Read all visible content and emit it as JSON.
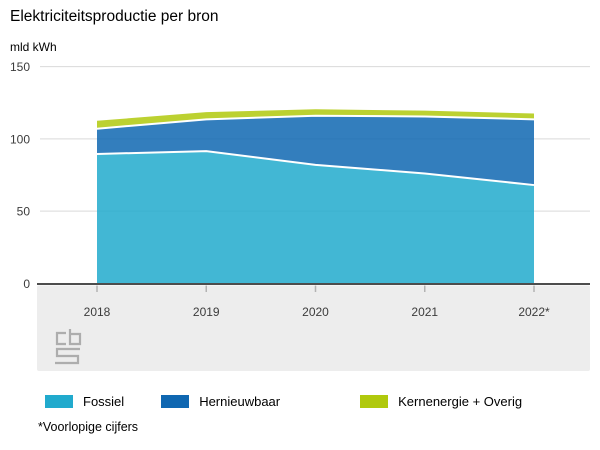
{
  "title": "Elektriciteitsproductie per bron",
  "unit_label": "mld kWh",
  "footnote": "*Voorlopige cijfers",
  "logo": "cbs",
  "colors": {
    "fossiel": "#21aacd",
    "hernieuwbaar": "#0f67b1",
    "kernenergie_overig": "#b0c90d",
    "gridline": "#d9d9d9",
    "zero_axis": "#4d4d4d",
    "axis_band": "#ededed",
    "tick": "#b3b3b3",
    "separator": "#ffffff",
    "logo_gray": "#adadad",
    "label_text": "#3c3c3c"
  },
  "chart_data": {
    "type": "area",
    "stacked": true,
    "title": "Elektriciteitsproductie per bron",
    "ylabel": "mld kWh",
    "categories": [
      "2018",
      "2019",
      "2020",
      "2021",
      "2022*"
    ],
    "series": [
      {
        "name": "Fossiel",
        "color": "#21aacd",
        "values": [
          89.5,
          91.5,
          82,
          76,
          68
        ]
      },
      {
        "name": "Hernieuwbaar",
        "color": "#0f67b1",
        "values": [
          17.5,
          22,
          34,
          39.5,
          45.5
        ]
      },
      {
        "name": "Kernenergie + Overig",
        "color": "#b0c90d",
        "values": [
          5.5,
          5,
          4.5,
          4,
          4
        ]
      }
    ],
    "stacked_totals": [
      112.5,
      118.5,
      120.5,
      119.5,
      117.5
    ],
    "ylim": [
      0,
      150
    ],
    "y_ticks": [
      0,
      50,
      100,
      150
    ],
    "grid": true,
    "legend_position": "bottom",
    "area_fill_opacity": 0.85
  }
}
